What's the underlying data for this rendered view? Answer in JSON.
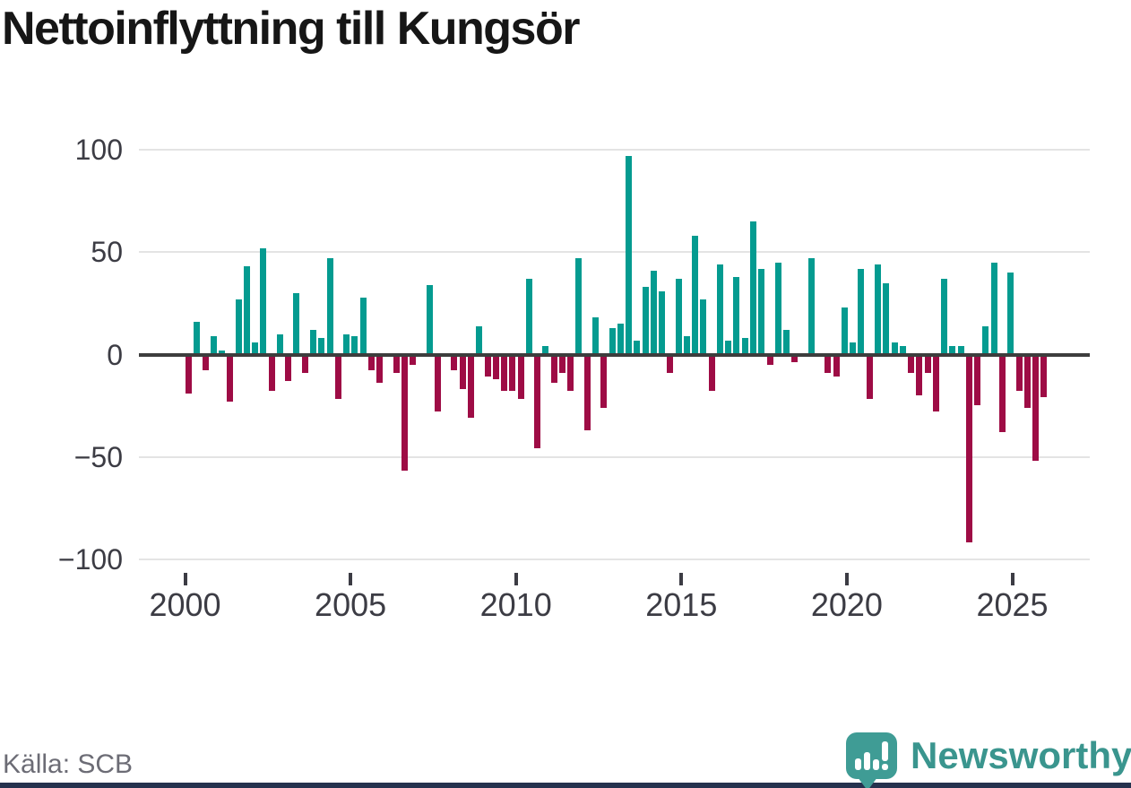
{
  "title": "Nettoinflyttning till Kungsör",
  "source": "Källa: SCB",
  "branding": {
    "name": "Newsworthy",
    "icon": "speech-bubble-bar-chart-icon"
  },
  "colors": {
    "positive_bar": "#049b90",
    "negative_bar": "#9e0c45",
    "zero_line": "#3d3d3d",
    "gridline": "#e4e4e4",
    "axis_text": "#3c3c44",
    "title_text": "#161616",
    "source_text": "#6c6c75",
    "brand_teal": "#3a958e",
    "footer_strip": "#25324e"
  },
  "chart_data": {
    "type": "bar",
    "title": "Nettoinflyttning till Kungsör",
    "xlabel": "",
    "ylabel": "",
    "frequency": "quarterly",
    "start_year": 2000,
    "quarters_per_year": 4,
    "x_tick_labels": [
      "2000",
      "2005",
      "2010",
      "2015",
      "2020",
      "2025"
    ],
    "y_ticks": [
      100,
      50,
      0,
      -50,
      -100
    ],
    "y_tick_labels": [
      "100",
      "50",
      "0",
      "−50",
      "−100"
    ],
    "ylim": [
      -110,
      105
    ],
    "grid": "horizontal",
    "legend": "none",
    "values": [
      -18,
      16,
      -7,
      9,
      2,
      -22,
      27,
      43,
      6,
      52,
      -17,
      10,
      -12,
      30,
      -8,
      12,
      8,
      47,
      -21,
      10,
      9,
      28,
      -7,
      -13,
      0,
      -8,
      -56,
      -4,
      0,
      34,
      -27,
      0,
      -7,
      -16,
      -30,
      14,
      -10,
      -11,
      -17,
      -17,
      -21,
      37,
      -45,
      4,
      -13,
      -8,
      -17,
      47,
      -36,
      18,
      -25,
      13,
      15,
      97,
      7,
      33,
      41,
      31,
      -8,
      37,
      9,
      58,
      27,
      -17,
      44,
      7,
      38,
      8,
      65,
      42,
      -4,
      45,
      12,
      -3,
      0,
      47,
      0,
      -8,
      -10,
      23,
      6,
      42,
      -21,
      44,
      35,
      6,
      4,
      -8,
      -19,
      -8,
      -27,
      37,
      4,
      4,
      -91,
      -24,
      14,
      45,
      -37,
      40,
      -17,
      -25,
      -51,
      -20
    ]
  }
}
